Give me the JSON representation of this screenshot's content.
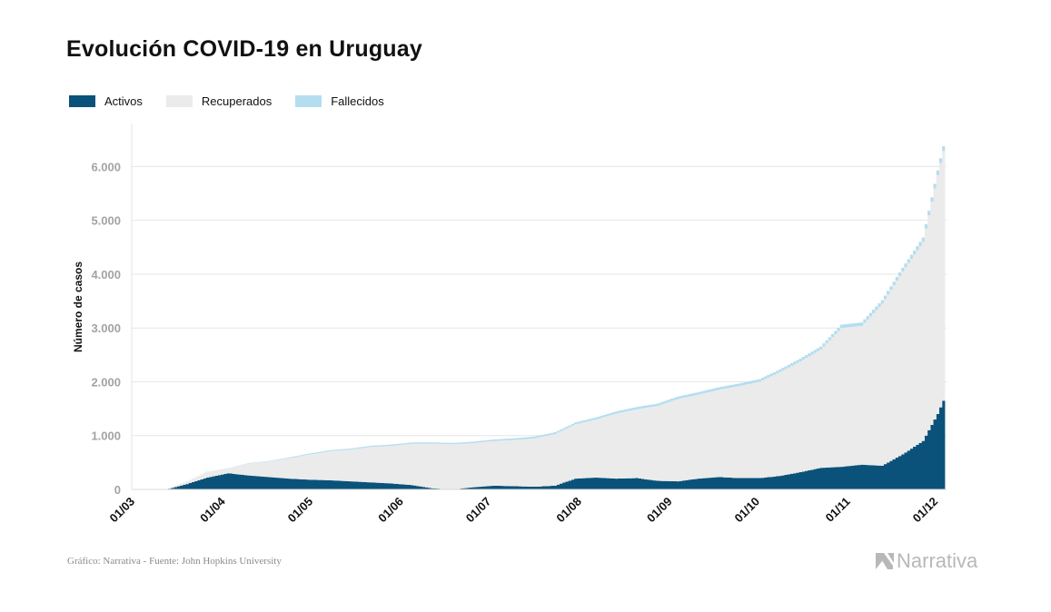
{
  "title": "Evolución COVID-19 en Uruguay",
  "legend": [
    {
      "label": "Activos",
      "color": "#0a527a"
    },
    {
      "label": "Recuperados",
      "color": "#ebebeb"
    },
    {
      "label": "Fallecidos",
      "color": "#b4def0"
    }
  ],
  "footer": {
    "source": "Gráfico: Narrativa - Fuente: John Hopkins University",
    "brand": "Narrativa",
    "brand_icon": "narrativa-logo-icon"
  },
  "chart_data": {
    "type": "area",
    "stacked": true,
    "ylabel": "Número de casos",
    "ylim": [
      0,
      6800
    ],
    "yticks": [
      0,
      1000,
      2000,
      3000,
      4000,
      5000,
      6000
    ],
    "ytick_labels": [
      "0",
      "1.000",
      "2.000",
      "3.000",
      "4.000",
      "5.000",
      "6.000"
    ],
    "xlim": [
      "2020-03-01",
      "2020-12-05"
    ],
    "xticks": [
      "2020-03-01",
      "2020-04-01",
      "2020-05-01",
      "2020-06-01",
      "2020-07-01",
      "2020-08-01",
      "2020-09-01",
      "2020-10-01",
      "2020-11-01",
      "2020-12-01"
    ],
    "xtick_labels": [
      "01/03",
      "01/04",
      "01/05",
      "01/06",
      "01/07",
      "01/08",
      "01/09",
      "01/10",
      "01/11",
      "01/12"
    ],
    "grid": true,
    "legend_position": "top-left",
    "x": [
      "2020-03-13",
      "2020-03-20",
      "2020-03-27",
      "2020-04-03",
      "2020-04-10",
      "2020-04-17",
      "2020-04-24",
      "2020-05-01",
      "2020-05-08",
      "2020-05-15",
      "2020-05-22",
      "2020-05-29",
      "2020-06-05",
      "2020-06-12",
      "2020-06-19",
      "2020-06-26",
      "2020-07-03",
      "2020-07-10",
      "2020-07-17",
      "2020-07-24",
      "2020-07-31",
      "2020-08-07",
      "2020-08-14",
      "2020-08-21",
      "2020-08-28",
      "2020-09-04",
      "2020-09-11",
      "2020-09-18",
      "2020-09-25",
      "2020-10-02",
      "2020-10-09",
      "2020-10-16",
      "2020-10-23",
      "2020-10-30",
      "2020-11-06",
      "2020-11-13",
      "2020-11-20",
      "2020-11-27",
      "2020-12-02",
      "2020-12-04"
    ],
    "series": [
      {
        "name": "Activos",
        "color": "#0a527a",
        "values": [
          0,
          100,
          220,
          300,
          260,
          230,
          200,
          180,
          170,
          150,
          130,
          110,
          80,
          20,
          0,
          40,
          70,
          60,
          50,
          70,
          200,
          220,
          200,
          210,
          160,
          150,
          200,
          230,
          210,
          210,
          250,
          320,
          400,
          420,
          460,
          440,
          650,
          900,
          1400,
          1650
        ]
      },
      {
        "name": "Recuperados",
        "color": "#ebebeb",
        "values": [
          0,
          50,
          110,
          90,
          220,
          290,
          380,
          470,
          540,
          590,
          660,
          700,
          770,
          830,
          840,
          820,
          830,
          860,
          900,
          960,
          1010,
          1080,
          1210,
          1280,
          1390,
          1530,
          1560,
          1620,
          1710,
          1790,
          1930,
          2060,
          2200,
          2580,
          2580,
          3010,
          3400,
          3700,
          4440,
          4640
        ]
      },
      {
        "name": "Fallecidos",
        "color": "#b4def0",
        "values": [
          0,
          0,
          1,
          4,
          7,
          9,
          15,
          18,
          19,
          20,
          22,
          23,
          23,
          23,
          24,
          26,
          28,
          30,
          32,
          33,
          34,
          38,
          40,
          42,
          43,
          45,
          46,
          47,
          48,
          48,
          49,
          52,
          56,
          60,
          63,
          66,
          70,
          80,
          87,
          90
        ]
      }
    ]
  }
}
